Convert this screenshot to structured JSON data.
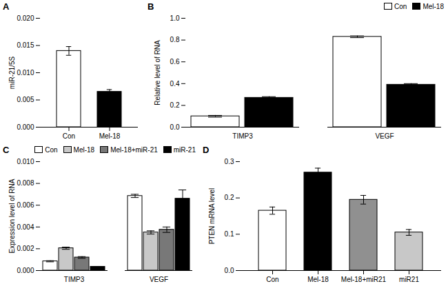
{
  "chart_data": [
    {
      "type": "bar",
      "title": "A",
      "categories": [
        "Con",
        "Mel-18"
      ],
      "values": [
        0.014,
        0.0065
      ],
      "errors": [
        0.0008,
        0.0004
      ],
      "colors": [
        "white",
        "black"
      ],
      "ylabel": "miR-21/5S",
      "ylim": [
        0,
        0.02
      ],
      "yticks": [
        {
          "value": 0,
          "label": "0.000"
        },
        0.005,
        {
          "value": 0.01,
          "label": "0.010"
        },
        0.015,
        {
          "value": 0.02,
          "label": "0.020"
        }
      ]
    },
    {
      "type": "bar",
      "title": "B",
      "categories": [
        "TIMP3",
        "VEGF"
      ],
      "series": [
        {
          "name": "Con",
          "color": "white",
          "values": [
            0.1,
            0.83
          ],
          "errors": [
            0.008,
            0.008
          ]
        },
        {
          "name": "Mel-18",
          "color": "black",
          "values": [
            0.27,
            0.39
          ],
          "errors": [
            0.01,
            0.01
          ]
        }
      ],
      "ylabel": "Relative level of RNA",
      "ylim": [
        0,
        1.0
      ],
      "yticks": [
        {
          "value": 0,
          "label": "0.0"
        },
        0.2,
        0.4,
        0.6,
        0.8,
        {
          "value": 1,
          "label": "1.0"
        }
      ],
      "legend": "upper right"
    },
    {
      "type": "bar",
      "title": "C",
      "categories": [
        "TIMP3",
        "VEGF"
      ],
      "series": [
        {
          "name": "Con",
          "color": "white",
          "values": [
            0.00085,
            0.00685
          ],
          "errors": [
            5e-05,
            0.00015
          ]
        },
        {
          "name": "Mel-18",
          "color": "#c8c8c8",
          "values": [
            0.00205,
            0.0035
          ],
          "errors": [
            0.0001,
            0.00015
          ]
        },
        {
          "name": "Mel-18+miR-21",
          "color": "#787878",
          "values": [
            0.0012,
            0.00375
          ],
          "errors": [
            8e-05,
            0.00025
          ]
        },
        {
          "name": "miR-21",
          "color": "black",
          "values": [
            0.00035,
            0.0066
          ],
          "errors": [
            3e-05,
            0.0008
          ]
        }
      ],
      "ylabel": "Expression level of RNA",
      "ylim": [
        0,
        0.01
      ],
      "yticks": [
        {
          "value": 0,
          "label": "0.000"
        },
        0.002,
        0.004,
        0.006,
        0.008,
        {
          "value": 0.01,
          "label": "0.010"
        }
      ],
      "legend": "upper right"
    },
    {
      "type": "bar",
      "title": "D",
      "categories": [
        "Con",
        "Mel-18",
        "Mel-18+miR21",
        "miR21"
      ],
      "values": [
        0.165,
        0.27,
        0.195,
        0.105
      ],
      "errors": [
        0.01,
        0.012,
        0.012,
        0.008
      ],
      "colors": [
        "white",
        "black",
        "#909090",
        "#c8c8c8"
      ],
      "ylabel": "PTEN mRNA level",
      "ylim": [
        0,
        0.3
      ],
      "yticks": [
        {
          "value": 0,
          "label": "0.0"
        },
        0.1,
        0.2,
        {
          "value": 0.3,
          "label": "0.3"
        }
      ]
    }
  ]
}
